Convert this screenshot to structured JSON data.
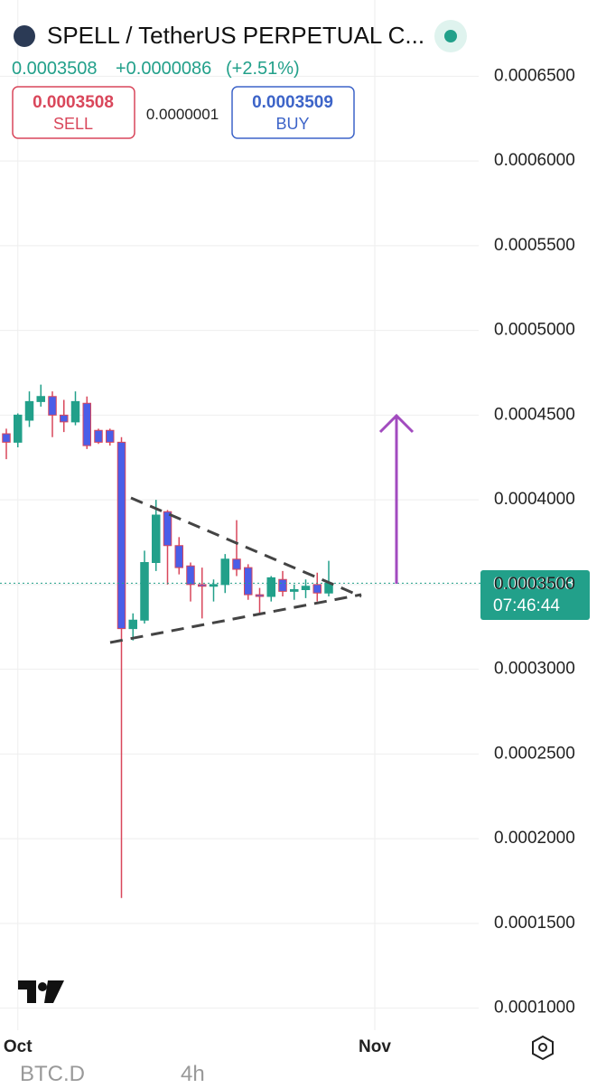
{
  "header": {
    "title": "SPELL / TetherUS PERPETUAL C...",
    "price": "0.0003508",
    "change": "+0.0000086",
    "change_pct": "(+2.51%)",
    "sell_price": "0.0003508",
    "sell_label": "SELL",
    "spread": "0.0000001",
    "buy_price": "0.0003509",
    "buy_label": "BUY"
  },
  "footer": {
    "tabs": [
      "BTC.D",
      "4h"
    ]
  },
  "chart_data": {
    "type": "candlestick",
    "categories": [
      null,
      null,
      null,
      null,
      null,
      null,
      null,
      null,
      null,
      null,
      null,
      null,
      null,
      null,
      null,
      null,
      null,
      null,
      null,
      null,
      null,
      null,
      null,
      null,
      null,
      null,
      null,
      null,
      null
    ],
    "open": [
      0.000439,
      0.000434,
      0.000447,
      0.000458,
      0.000461,
      0.00045,
      0.000446,
      0.000457,
      0.000441,
      0.000441,
      0.000434,
      0.000324,
      0.000329,
      0.000363,
      0.000393,
      0.000373,
      0.000361,
      0.00035,
      0.000349,
      0.00035,
      0.000365,
      0.00036,
      0.000344,
      0.000343,
      0.000353,
      0.000346,
      0.000347,
      0.00035,
      0.000345
    ],
    "high": [
      0.000442,
      0.000451,
      0.000464,
      0.000468,
      0.000464,
      0.000459,
      0.000464,
      0.000461,
      0.000442,
      0.000442,
      0.000437,
      0.000333,
      0.00037,
      0.0004,
      0.000394,
      0.000378,
      0.000363,
      0.00036,
      0.000353,
      0.000368,
      0.000388,
      0.000362,
      0.000348,
      0.000355,
      0.000358,
      0.00035,
      0.000353,
      0.000357,
      0.000364
    ],
    "low": [
      0.000424,
      0.000431,
      0.000443,
      0.000455,
      0.000437,
      0.00044,
      0.000444,
      0.00043,
      0.000433,
      0.000432,
      0.000165,
      0.000317,
      0.000327,
      0.000358,
      0.00035,
      0.000356,
      0.00034,
      0.00033,
      0.00034,
      0.000345,
      0.000355,
      0.000341,
      0.000333,
      0.00034,
      0.000343,
      0.000341,
      0.000342,
      0.00034,
      0.000343
    ],
    "close": [
      0.000434,
      0.00045,
      0.000458,
      0.000461,
      0.00045,
      0.000446,
      0.000458,
      0.000432,
      0.000434,
      0.000434,
      0.000324,
      0.000329,
      0.000363,
      0.000391,
      0.000373,
      0.00036,
      0.00035,
      0.000349,
      0.00035,
      0.000365,
      0.000359,
      0.000344,
      0.000343,
      0.000354,
      0.000346,
      0.000347,
      0.000349,
      0.000345,
      0.0003508
    ],
    "up_color": "#22a08a",
    "down_color": "#4a5ee8",
    "down_wick_color": "#d9475b",
    "ylim": [
      8.7e-05,
      0.000695
    ],
    "yticks": [
      {
        "value": 0.00065,
        "label": "0.0006500"
      },
      {
        "value": 0.0006,
        "label": "0.0006000"
      },
      {
        "value": 0.00055,
        "label": "0.0005500"
      },
      {
        "value": 0.0005,
        "label": "0.0005000"
      },
      {
        "value": 0.00045,
        "label": "0.0004500"
      },
      {
        "value": 0.0004,
        "label": "0.0004000"
      },
      {
        "value": 0.00035,
        "label": "0.0003500"
      },
      {
        "value": 0.0003,
        "label": "0.0003000"
      },
      {
        "value": 0.00025,
        "label": "0.0002500"
      },
      {
        "value": 0.0002,
        "label": "0.0002000"
      },
      {
        "value": 0.00015,
        "label": "0.0001500"
      },
      {
        "value": 0.0001,
        "label": "0.0001000"
      }
    ],
    "xticks": [
      {
        "value": 1,
        "label": "Oct"
      },
      {
        "value": 32,
        "label": "Nov"
      }
    ],
    "last_price": 0.0003508,
    "countdown": "07:46:44",
    "grid": true
  }
}
